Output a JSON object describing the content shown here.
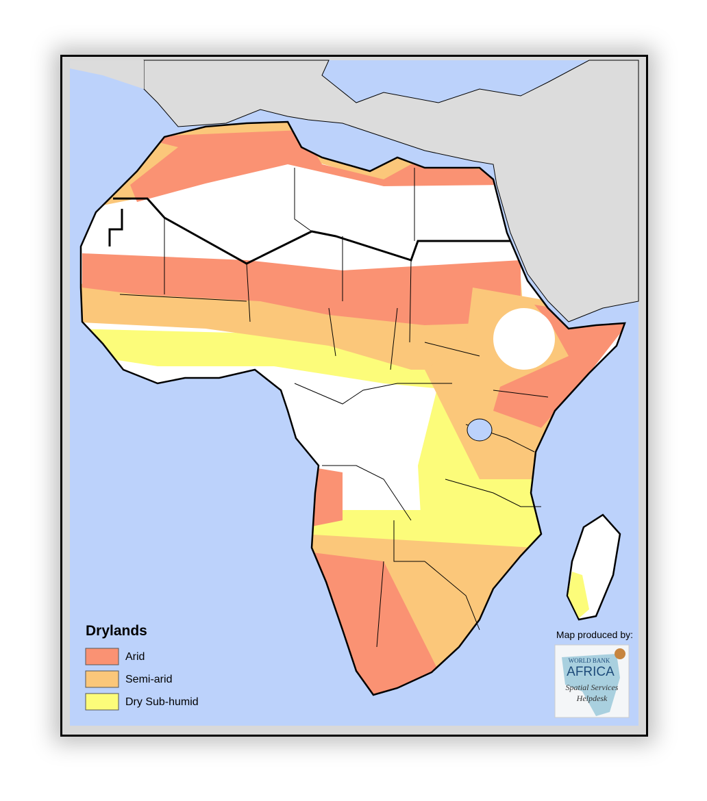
{
  "legend": {
    "title": "Drylands",
    "items": [
      {
        "label": "Arid",
        "color": "#fa9273"
      },
      {
        "label": "Semi-arid",
        "color": "#fbc77a"
      },
      {
        "label": "Dry Sub-humid",
        "color": "#fcfc7a"
      }
    ]
  },
  "credit": {
    "caption": "Map produced by:",
    "logo": {
      "line1": "WORLD BANK",
      "line2": "AFRICA",
      "line3": "Spatial Services",
      "line4": "Helpdesk"
    }
  }
}
